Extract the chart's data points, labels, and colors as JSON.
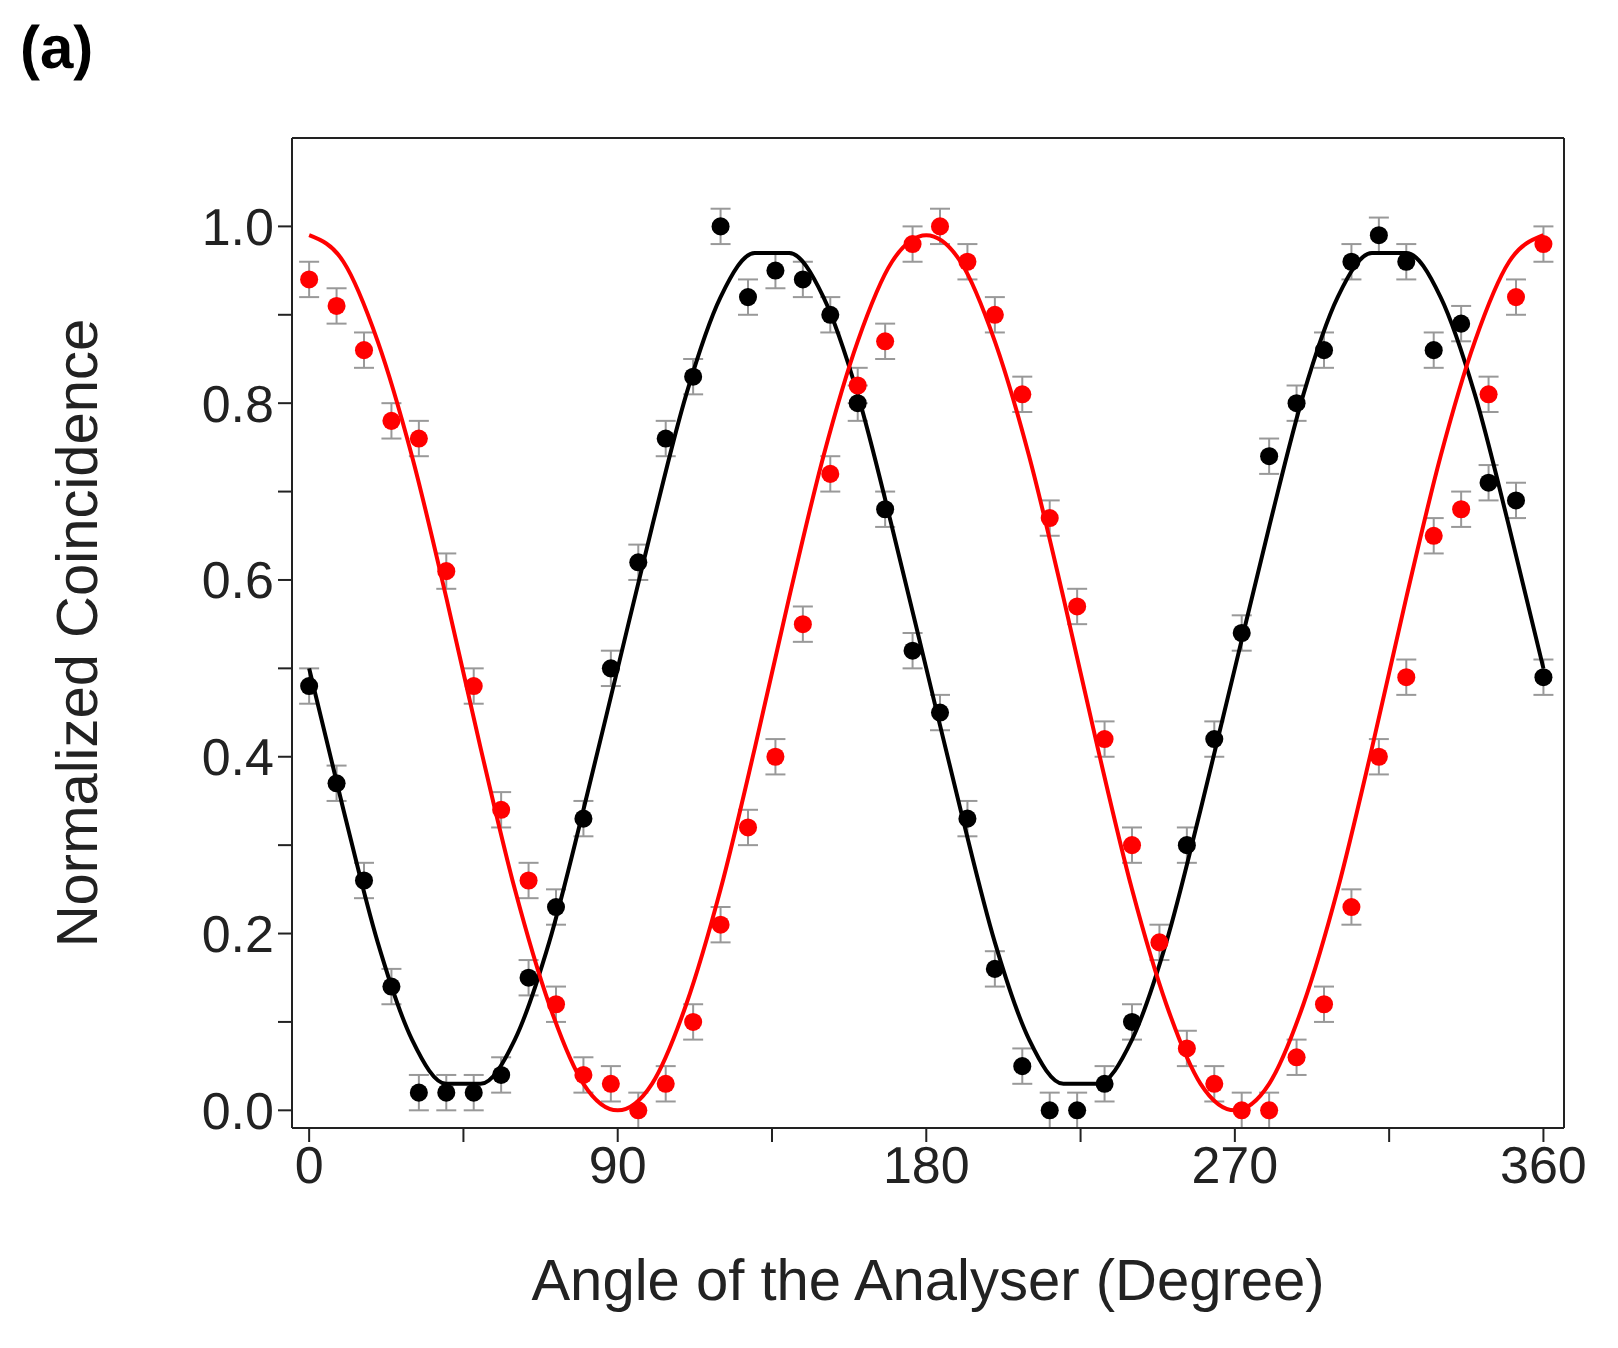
{
  "chart_data": {
    "type": "scatter",
    "xlabel": "Angle of the Analyser (Degree)",
    "ylabel": "Normalized Coincidence",
    "annotations": [
      "(a)"
    ],
    "xlim": [
      -5,
      366
    ],
    "ylim": [
      -0.02,
      1.1
    ],
    "xticks": [
      0,
      {
        "value": 45,
        "label": null
      },
      90,
      {
        "value": 135,
        "label": null
      },
      180,
      {
        "value": 225,
        "label": null
      },
      270,
      {
        "value": 315,
        "label": null
      },
      360
    ],
    "yticks": [
      {
        "value": 0,
        "label": "0.0"
      },
      {
        "value": 0.1,
        "label": null
      },
      0.2,
      {
        "value": 0.3,
        "label": null
      },
      0.4,
      {
        "value": 0.5,
        "label": null
      },
      0.6,
      {
        "value": 0.7,
        "label": null
      },
      0.8,
      {
        "value": 0.9,
        "label": null
      },
      {
        "value": 1,
        "label": "1.0"
      }
    ],
    "marker": "circle",
    "series": [
      {
        "color": "#000000",
        "x": [
          0,
          8,
          16,
          24,
          32,
          40,
          48,
          56,
          64,
          72,
          80,
          88,
          96,
          104,
          112,
          120,
          128,
          136,
          144,
          152,
          160,
          168,
          176,
          184,
          192,
          200,
          208,
          216,
          224,
          232,
          240,
          248,
          256,
          264,
          272,
          280,
          288,
          296,
          304,
          312,
          320,
          328,
          336,
          344,
          352,
          360
        ],
        "values": [
          0.48,
          0.37,
          0.26,
          0.14,
          0.02,
          0.02,
          0.02,
          0.04,
          0.15,
          0.23,
          0.33,
          0.5,
          0.62,
          0.76,
          0.83,
          1.0,
          0.92,
          0.95,
          0.94,
          0.9,
          0.8,
          0.68,
          0.52,
          0.45,
          0.33,
          0.16,
          0.05,
          0.0,
          0.0,
          0.03,
          0.1,
          null,
          0.3,
          0.42,
          0.54,
          0.74,
          0.8,
          0.86,
          0.96,
          0.99,
          0.96,
          0.86,
          0.89,
          0.71,
          0.69,
          0.49
        ],
        "errors": [
          0.02,
          0.02,
          0.02,
          0.02,
          0.02,
          0.02,
          0.02,
          0.02,
          0.02,
          0.02,
          0.02,
          0.02,
          0.02,
          0.02,
          0.02,
          0.02,
          0.02,
          0.02,
          0.02,
          0.02,
          0.02,
          0.02,
          0.02,
          0.02,
          0.02,
          0.02,
          0.02,
          0.02,
          0.02,
          0.02,
          0.02,
          null,
          0.02,
          0.02,
          0.02,
          0.02,
          0.02,
          0.02,
          0.02,
          0.02,
          0.02,
          0.02,
          0.02,
          0.02,
          0.02,
          0.02
        ]
      },
      {
        "color": "#ff0000",
        "x": [
          0,
          8,
          16,
          24,
          32,
          40,
          48,
          56,
          64,
          72,
          80,
          88,
          96,
          104,
          112,
          120,
          128,
          136,
          144,
          152,
          160,
          168,
          176,
          184,
          192,
          200,
          208,
          216,
          224,
          232,
          240,
          248,
          256,
          264,
          272,
          280,
          288,
          296,
          304,
          312,
          320,
          328,
          336,
          344,
          352,
          360
        ],
        "values": [
          0.94,
          0.91,
          0.86,
          0.78,
          0.76,
          0.61,
          0.48,
          0.34,
          0.26,
          0.12,
          0.04,
          0.03,
          0.0,
          0.03,
          0.1,
          0.21,
          0.32,
          0.4,
          0.55,
          0.72,
          0.82,
          0.87,
          0.98,
          1.0,
          0.96,
          0.9,
          0.81,
          0.67,
          0.57,
          0.42,
          0.3,
          0.19,
          0.07,
          0.03,
          0.0,
          0.0,
          0.06,
          0.12,
          0.23,
          0.4,
          0.49,
          0.65,
          0.68,
          0.81,
          0.92,
          0.98
        ],
        "errors": [
          0.02,
          0.02,
          0.02,
          0.02,
          0.02,
          0.02,
          0.02,
          0.02,
          0.02,
          0.02,
          0.02,
          0.02,
          0.02,
          0.02,
          0.02,
          0.02,
          0.02,
          0.02,
          0.02,
          0.02,
          0.02,
          0.02,
          0.02,
          0.02,
          0.02,
          0.02,
          0.02,
          0.02,
          0.02,
          0.02,
          0.02,
          0.02,
          0.02,
          0.02,
          0.02,
          0.02,
          0.02,
          0.02,
          0.02,
          0.02,
          0.02,
          0.02,
          0.02,
          0.02,
          0.02,
          0.02
        ]
      },
      {
        "type": "line",
        "color": "#000000",
        "marker": "none",
        "line_style": "solid",
        "x": [
          0,
          10,
          20,
          30,
          40,
          50,
          60,
          70,
          80,
          90,
          100,
          110,
          120,
          130,
          140,
          150,
          160,
          170,
          180,
          190,
          200,
          210,
          220,
          230,
          240,
          250,
          260,
          270,
          280,
          290,
          300,
          310,
          320,
          330,
          340,
          350,
          360
        ],
        "values": [
          0.5,
          0.34,
          0.19,
          0.08,
          0.03,
          0.03,
          0.08,
          0.19,
          0.34,
          0.5,
          0.66,
          0.81,
          0.92,
          0.97,
          0.97,
          0.92,
          0.81,
          0.66,
          0.5,
          0.34,
          0.19,
          0.08,
          0.03,
          0.03,
          0.08,
          0.19,
          0.34,
          0.5,
          0.66,
          0.81,
          0.92,
          0.97,
          0.97,
          0.92,
          0.81,
          0.66,
          0.5
        ]
      },
      {
        "type": "line",
        "color": "#ff0000",
        "marker": "none",
        "line_style": "solid",
        "x": [
          0,
          10,
          20,
          30,
          40,
          50,
          60,
          70,
          80,
          90,
          100,
          110,
          120,
          130,
          140,
          150,
          160,
          170,
          180,
          190,
          200,
          210,
          220,
          230,
          240,
          250,
          260,
          270,
          280,
          290,
          300,
          310,
          320,
          330,
          340,
          350,
          360
        ],
        "values": [
          0.99,
          0.96,
          0.87,
          0.74,
          0.58,
          0.41,
          0.25,
          0.12,
          0.03,
          0.0,
          0.03,
          0.12,
          0.25,
          0.41,
          0.58,
          0.74,
          0.87,
          0.96,
          0.99,
          0.96,
          0.87,
          0.74,
          0.58,
          0.41,
          0.25,
          0.12,
          0.03,
          0.0,
          0.03,
          0.12,
          0.25,
          0.41,
          0.58,
          0.74,
          0.87,
          0.96,
          0.99
        ]
      }
    ]
  }
}
